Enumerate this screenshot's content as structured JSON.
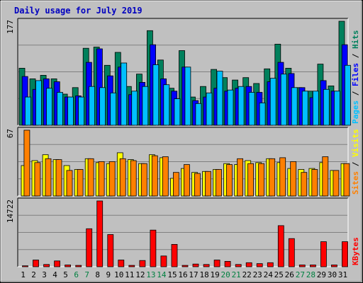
{
  "colors": {
    "background": "#c0c0c0",
    "hits": "#00805c",
    "files": "#0000ff",
    "pages": "#00c0ff",
    "visits": "#ffff00",
    "sites": "#ff8000",
    "kbytes": "#ff0000",
    "title": "#0000c0",
    "weekend_label": "#008040",
    "day_label": "#000000"
  },
  "chart_data": {
    "type": "bar",
    "title": "Daily usage for July 2019",
    "categories": [
      "1",
      "2",
      "3",
      "4",
      "5",
      "6",
      "7",
      "8",
      "9",
      "10",
      "11",
      "12",
      "13",
      "14",
      "15",
      "16",
      "17",
      "18",
      "19",
      "20",
      "21",
      "22",
      "23",
      "24",
      "25",
      "26",
      "27",
      "28",
      "29",
      "30",
      "31"
    ],
    "weekend_days": [
      "6",
      "7",
      "13",
      "14",
      "20",
      "21",
      "27",
      "28"
    ],
    "panels": [
      {
        "name": "hits-files-pages",
        "max_label": "177",
        "ylim": [
          0,
          177
        ],
        "legend": [
          {
            "text": "Pages",
            "color": "#00c0ff"
          },
          {
            "text": " / ",
            "color": "#000000"
          },
          {
            "text": "Files",
            "color": "#0000ff"
          },
          {
            "text": " / ",
            "color": "#000000"
          },
          {
            "text": "Hits",
            "color": "#00805c"
          }
        ],
        "series": [
          {
            "name": "Hits",
            "color": "#00805c",
            "values": [
              97,
              79,
              85,
              79,
              53,
              64,
              131,
              133,
              102,
              124,
              66,
              87,
              161,
              111,
              63,
              127,
              48,
              66,
              95,
              81,
              77,
              81,
              71,
              96,
              138,
              97,
              64,
              58,
              104,
              67,
              177
            ]
          },
          {
            "name": "Files",
            "color": "#0000ff",
            "values": [
              83,
              61,
              79,
              74,
              48,
              50,
              107,
              130,
              84,
              99,
              52,
              73,
              137,
              79,
              58,
              99,
              42,
              48,
              63,
              58,
              63,
              66,
              56,
              74,
              107,
              88,
              64,
              47,
              76,
              58,
              137
            ]
          },
          {
            "name": "Pages",
            "color": "#00c0ff",
            "values": [
              48,
              76,
              63,
              56,
              48,
              48,
              66,
              64,
              55,
              106,
              58,
              66,
              103,
              69,
              45,
              99,
              37,
              55,
              92,
              60,
              66,
              56,
              38,
              80,
              87,
              64,
              58,
              58,
              61,
              58,
              102
            ]
          }
        ]
      },
      {
        "name": "visits-sites",
        "max_label": "67",
        "ylim": [
          0,
          67
        ],
        "legend": [
          {
            "text": "Sites",
            "color": "#ff8000"
          },
          {
            "text": " / ",
            "color": "#000000"
          },
          {
            "text": "Visits",
            "color": "#ffff00"
          }
        ],
        "series": [
          {
            "name": "Visits",
            "color": "#ffff00",
            "values": [
              31,
              36,
              42,
              37,
              31,
              27,
              38,
              34,
              33,
              44,
              37,
              33,
              42,
              39,
              18,
              28,
              24,
              25,
              27,
              33,
              32,
              36,
              34,
              38,
              34,
              28,
              27,
              28,
              34,
              26,
              33
            ]
          },
          {
            "name": "Sites",
            "color": "#ff8000",
            "values": [
              67,
              34,
              38,
              37,
              26,
              27,
              38,
              35,
              35,
              38,
              36,
              33,
              41,
              40,
              24,
              32,
              23,
              25,
              27,
              32,
              38,
              33,
              33,
              38,
              39,
              35,
              24,
              27,
              40,
              26,
              33
            ]
          }
        ]
      },
      {
        "name": "kbytes",
        "max_label": "14722",
        "ylim": [
          0,
          14722
        ],
        "legend": [
          {
            "text": "KBytes",
            "color": "#ff0000"
          }
        ],
        "series": [
          {
            "name": "KBytes",
            "color": "#ff0000",
            "values": [
              200,
              1500,
              500,
              1300,
              400,
              300,
              8500,
              14722,
              7200,
              1500,
              300,
              1400,
              8200,
              2400,
              5000,
              300,
              600,
              500,
              1500,
              1200,
              500,
              900,
              700,
              900,
              9200,
              6300,
              400,
              400,
              5600,
              400,
              5600
            ]
          }
        ]
      }
    ]
  }
}
